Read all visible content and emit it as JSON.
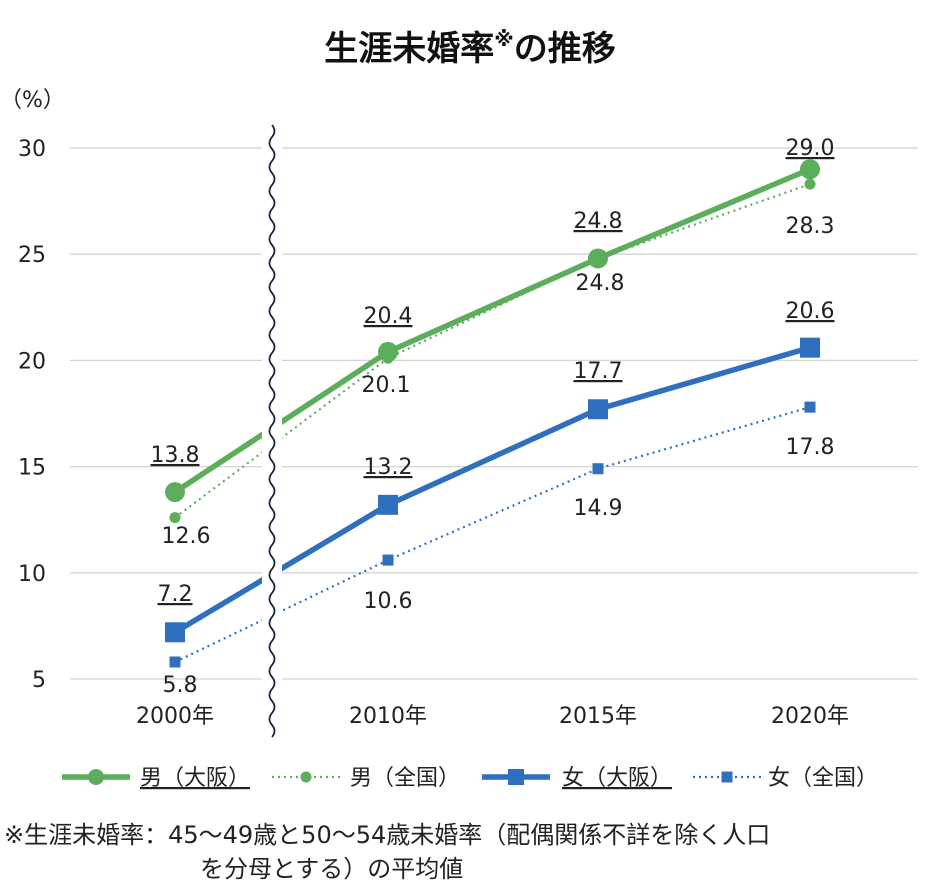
{
  "chart_data": {
    "type": "line",
    "title_main": "生涯未婚率",
    "title_mark": "※",
    "title_suffix": "の推移",
    "y_unit_label": "（%）",
    "categories": [
      "2000年",
      "2010年",
      "2015年",
      "2020年"
    ],
    "ylim": [
      5,
      30
    ],
    "yticks": [
      "5",
      "10",
      "15",
      "20",
      "25",
      "30"
    ],
    "axis_break": "wavy line between 2000年 and 2010年",
    "grid": true,
    "legend_position": "bottom",
    "series": [
      {
        "name": "男（大阪）",
        "values": [
          13.8,
          20.4,
          24.8,
          29.0
        ],
        "labels": [
          "13.8",
          "20.4",
          "24.8",
          "29.0"
        ],
        "color": "#5cad5c",
        "style": "solid",
        "marker": "circle",
        "label_underline": true
      },
      {
        "name": "男（全国）",
        "values": [
          12.6,
          20.1,
          24.8,
          28.3
        ],
        "labels": [
          "12.6",
          "20.1",
          "24.8",
          "28.3"
        ],
        "color": "#5cad5c",
        "style": "dotted",
        "marker": "circle",
        "label_underline": false
      },
      {
        "name": "女（大阪）",
        "values": [
          7.2,
          13.2,
          17.7,
          20.6
        ],
        "labels": [
          "7.2",
          "13.2",
          "17.7",
          "20.6"
        ],
        "color": "#2f6fbd",
        "style": "solid",
        "marker": "square",
        "label_underline": true
      },
      {
        "name": "女（全国）",
        "values": [
          5.8,
          10.6,
          14.9,
          17.8
        ],
        "labels": [
          "5.8",
          "10.6",
          "14.9",
          "17.8"
        ],
        "color": "#2f6fbd",
        "style": "dotted",
        "marker": "square",
        "label_underline": false
      }
    ]
  },
  "footnote": {
    "line1": "※生涯未婚率：45〜49歳と50〜54歳未婚率（配偶関係不詳を除く人口",
    "line2": "を分母とする）の平均値"
  }
}
